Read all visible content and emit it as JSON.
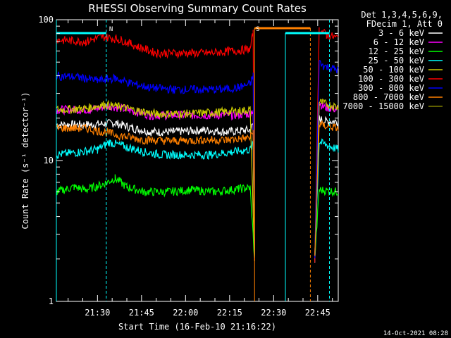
{
  "chart_data": {
    "type": "line",
    "title": "RHESSI Observing Summary Count Rates",
    "xlabel": "Start Time (16-Feb-10 21:16:22)",
    "ylabel": "Count Rate (s⁻¹ detector⁻¹)",
    "ylog": true,
    "ylim": [
      1,
      100
    ],
    "xlim_minutes": [
      0,
      96
    ],
    "x_ticks": [
      {
        "m": 14,
        "label": "21:30"
      },
      {
        "m": 29,
        "label": "21:45"
      },
      {
        "m": 44,
        "label": "22:00"
      },
      {
        "m": 59,
        "label": "22:15"
      },
      {
        "m": 74,
        "label": "22:30"
      },
      {
        "m": 89,
        "label": "22:45"
      }
    ],
    "y_ticks": [
      {
        "v": 1,
        "label": "1"
      },
      {
        "v": 10,
        "label": "10"
      },
      {
        "v": 100,
        "label": "100"
      }
    ],
    "legend_header": [
      "Det 1,3,4,5,6,9,",
      "FDecim 1, Att 0"
    ],
    "series": [
      {
        "name": "3 - 6 keV",
        "color": "#ffffff",
        "points": [
          [
            0,
            18
          ],
          [
            12,
            18
          ],
          [
            20,
            18.5
          ],
          [
            26,
            17
          ],
          [
            32,
            16
          ],
          [
            40,
            16
          ],
          [
            50,
            16.5
          ],
          [
            58,
            16
          ],
          [
            66,
            16.5
          ],
          [
            67,
            18
          ],
          [
            67.5,
            2
          ],
          [
            88,
            2
          ],
          [
            89.5,
            20
          ],
          [
            91,
            19
          ],
          [
            96,
            19
          ]
        ]
      },
      {
        "name": "6 - 12 keV",
        "color": "#ff00ff",
        "points": [
          [
            0,
            23
          ],
          [
            12,
            23
          ],
          [
            18,
            24.5
          ],
          [
            26,
            22.5
          ],
          [
            32,
            21
          ],
          [
            42,
            21
          ],
          [
            52,
            21
          ],
          [
            60,
            21
          ],
          [
            66,
            21.5
          ],
          [
            67,
            23
          ],
          [
            67.5,
            2
          ],
          [
            88,
            2
          ],
          [
            89.5,
            26
          ],
          [
            91,
            24
          ],
          [
            96,
            23
          ]
        ]
      },
      {
        "name": "12 - 25 keV",
        "color": "#00ff00",
        "points": [
          [
            0,
            6
          ],
          [
            6,
            6.5
          ],
          [
            10,
            6.2
          ],
          [
            16,
            6.8
          ],
          [
            20,
            7.5
          ],
          [
            24,
            6.5
          ],
          [
            30,
            6
          ],
          [
            38,
            6
          ],
          [
            46,
            6.2
          ],
          [
            54,
            6
          ],
          [
            62,
            6.3
          ],
          [
            66,
            6.4
          ],
          [
            67.5,
            2
          ],
          [
            88,
            2
          ],
          [
            89.5,
            6.2
          ],
          [
            96,
            6
          ]
        ]
      },
      {
        "name": "25 - 50 keV",
        "color": "#00ffff",
        "points": [
          [
            0,
            11
          ],
          [
            8,
            11.5
          ],
          [
            14,
            12
          ],
          [
            18,
            13.5
          ],
          [
            24,
            12.5
          ],
          [
            30,
            11.5
          ],
          [
            36,
            11
          ],
          [
            44,
            11
          ],
          [
            52,
            11
          ],
          [
            60,
            11.5
          ],
          [
            66,
            12
          ],
          [
            67,
            13
          ],
          [
            67.5,
            2
          ],
          [
            88,
            2
          ],
          [
            89.5,
            13.5
          ],
          [
            96,
            12
          ]
        ]
      },
      {
        "name": "50 - 100 keV",
        "color": "#cccc00",
        "points": [
          [
            0,
            23
          ],
          [
            10,
            23.5
          ],
          [
            16,
            25
          ],
          [
            22,
            24
          ],
          [
            28,
            22.5
          ],
          [
            34,
            21.5
          ],
          [
            44,
            21.5
          ],
          [
            54,
            22
          ],
          [
            62,
            22.5
          ],
          [
            66,
            23
          ],
          [
            67.5,
            2
          ],
          [
            88,
            2
          ],
          [
            89.5,
            26
          ],
          [
            96,
            24
          ]
        ]
      },
      {
        "name": "100 - 300 keV",
        "color": "#ff0000",
        "points": [
          [
            0,
            72
          ],
          [
            10,
            70
          ],
          [
            16,
            76
          ],
          [
            22,
            72
          ],
          [
            28,
            64
          ],
          [
            34,
            58
          ],
          [
            44,
            58
          ],
          [
            52,
            58
          ],
          [
            60,
            60
          ],
          [
            66,
            62
          ],
          [
            67,
            80
          ],
          [
            67.5,
            2
          ],
          [
            88,
            2
          ],
          [
            89.5,
            85
          ],
          [
            92,
            78
          ],
          [
            96,
            74
          ]
        ]
      },
      {
        "name": "300 - 800 keV",
        "color": "#0000ff",
        "points": [
          [
            0,
            40
          ],
          [
            8,
            39
          ],
          [
            14,
            37
          ],
          [
            20,
            38.5
          ],
          [
            26,
            35
          ],
          [
            32,
            33
          ],
          [
            40,
            32
          ],
          [
            48,
            32
          ],
          [
            56,
            32
          ],
          [
            62,
            33
          ],
          [
            66,
            35
          ],
          [
            67,
            40
          ],
          [
            67.5,
            2
          ],
          [
            88,
            2
          ],
          [
            89.5,
            50
          ],
          [
            91,
            47
          ],
          [
            96,
            44
          ]
        ]
      },
      {
        "name": "800 - 7000 keV",
        "color": "#ff8000",
        "points": [
          [
            0,
            17
          ],
          [
            10,
            17
          ],
          [
            16,
            16
          ],
          [
            22,
            15
          ],
          [
            30,
            14
          ],
          [
            40,
            13.8
          ],
          [
            50,
            14
          ],
          [
            58,
            14
          ],
          [
            66,
            14.5
          ],
          [
            67,
            16
          ],
          [
            67.5,
            2
          ],
          [
            88,
            2
          ],
          [
            89.5,
            18
          ],
          [
            96,
            17
          ]
        ]
      },
      {
        "name": "7000 - 15000 keV",
        "color": "#808000",
        "points": []
      }
    ],
    "annotations": [
      {
        "label": "N",
        "color": "#00ffff",
        "m": 17
      },
      {
        "label": "S",
        "color": "#ff8000",
        "m": 67
      }
    ]
  },
  "timestamp": "14-Oct-2021 08:28"
}
